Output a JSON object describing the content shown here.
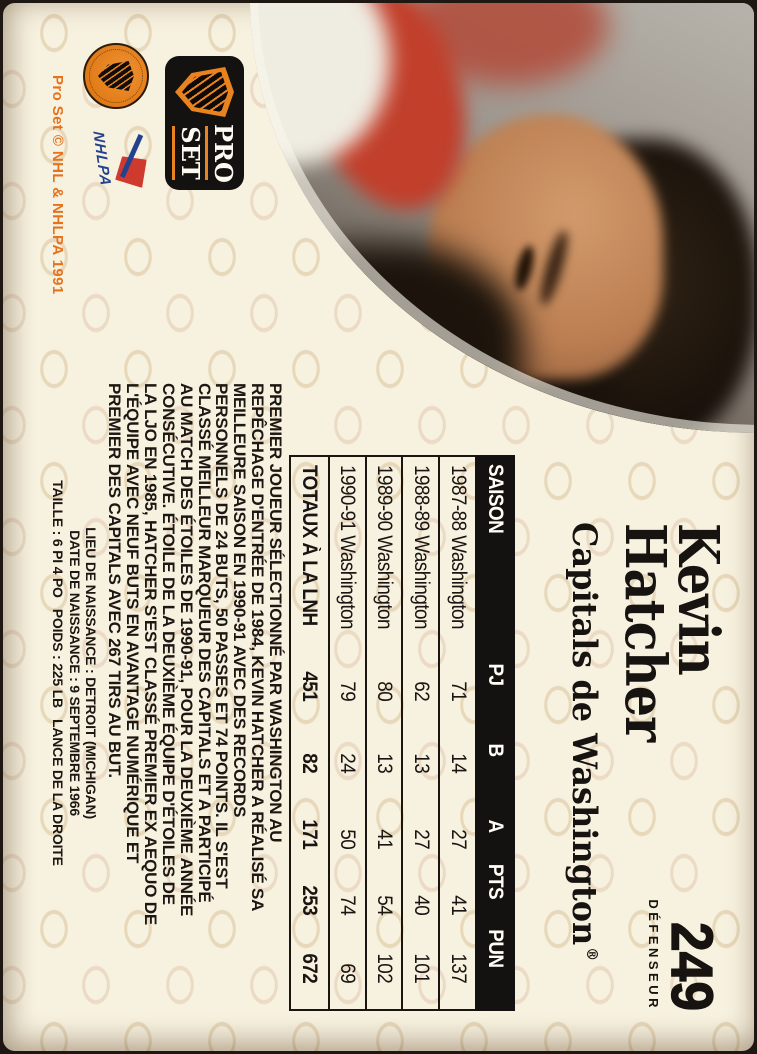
{
  "card": {
    "number": "249",
    "position": "DÉFENSEUR",
    "copyright": "Pro Set © NHL & NHLPA 1991"
  },
  "player": {
    "first_name": "Kevin",
    "last_name": "Hatcher",
    "team": "Capitals de Washington",
    "reg_mark": "®"
  },
  "logos": {
    "pro_set_line1": "PRO",
    "pro_set_line2": "SET",
    "nhlpa_text": "NHLPA"
  },
  "stats_table": {
    "headers": [
      "SAISON",
      "PJ",
      "B",
      "A",
      "PTS",
      "PUN"
    ],
    "rows": [
      [
        "1987-88 Washington",
        "71",
        "14",
        "27",
        "41",
        "137"
      ],
      [
        "1988-89 Washington",
        "62",
        "13",
        "27",
        "40",
        "101"
      ],
      [
        "1989-90 Washington",
        "80",
        "13",
        "41",
        "54",
        "102"
      ],
      [
        "1990-91 Washington",
        "79",
        "24",
        "50",
        "74",
        "69"
      ]
    ],
    "totals": [
      "TOTAUX À LA LNH",
      "451",
      "82",
      "171",
      "253",
      "672"
    ]
  },
  "bio_lines": [
    "PREMIER JOUEUR SÉLECTIONNÉ PAR WASHINGTON AU",
    "REPÊCHAGE D'ENTRÉE DE 1984, KEVIN HATCHER A RÉALISÉ SA",
    "MEILLEURE SAISON EN 1990-91 AVEC DES RECORDS",
    "PERSONNELS DE 24 BUTS, 50 PASSES ET 74 POINTS. IL S'EST",
    "CLASSÉ MEILLEUR MARQUEUR DES CAPITALS ET A PARTICIPÉ",
    "AU MATCH DES ÉTOILES DE 1990-91, POUR LA DEUXIÈME ANNÉE",
    "CONSÉCUTIVE. ÉTOILE DE LA DEUXIÈME ÉQUIPE D'ÉTOILES DE",
    "LA LJO EN 1985, HATCHER S'EST CLASSÉ PREMIER EX AEQUO DE",
    "L'ÉQUIPE AVEC NEUF BUTS EN AVANTAGE NUMÉRIQUE ET",
    "PREMIER DES CAPITALS AVEC 267 TIRS AU BUT."
  ],
  "vitals": [
    "LIEU DE NAISSANCE : DETROIT (MICHIGAN)",
    "DATE DE NAISSANCE : 9 SEPTEMBRE 1966",
    "TAILLE : 6 PI 4 PO   POIDS : 225 LB   LANCE DE LA DROITE"
  ],
  "colors": {
    "accent_orange": "#e5731e",
    "card_cream": "#f7f1df",
    "table_header_bg": "#141210",
    "text_black": "#1a1512",
    "nhlpa_blue": "#24418e",
    "nhlpa_red": "#cf3a2f"
  }
}
